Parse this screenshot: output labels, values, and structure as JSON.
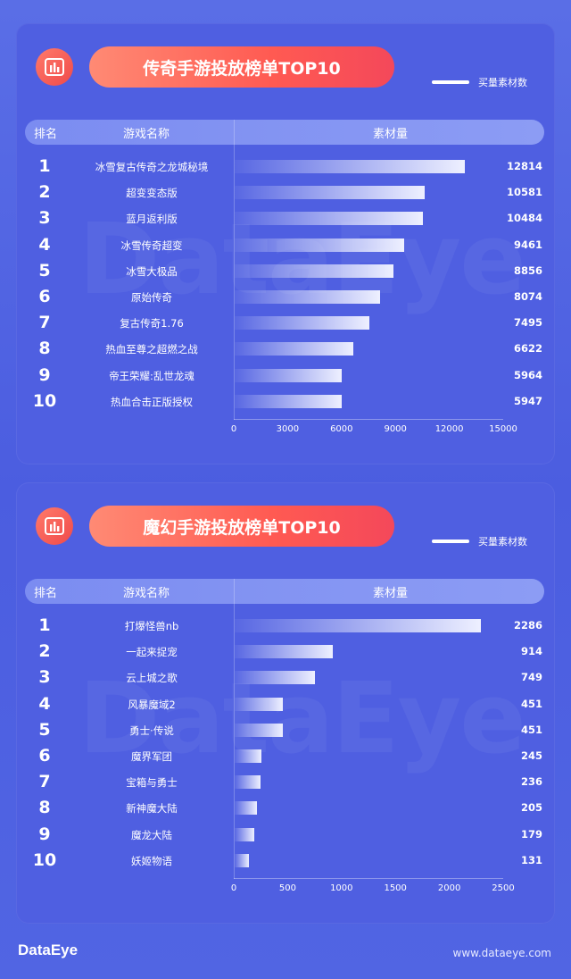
{
  "watermark": "DataEye",
  "legend_label": "买量素材数",
  "header": {
    "rank": "排名",
    "name": "游戏名称",
    "material": "素材量"
  },
  "footer": {
    "logo": "DataEye",
    "url": "www.dataeye.com"
  },
  "icons": {
    "panel_icon": "bar-chart-icon"
  },
  "colors": {
    "title_pill": "#ff6a5e",
    "background": "#4f5fe1",
    "bar_end": "#eef0ff"
  },
  "chart_data": [
    {
      "type": "bar",
      "orientation": "horizontal",
      "title": "传奇手游投放榜单TOP10",
      "ranks": [
        "1",
        "2",
        "3",
        "4",
        "5",
        "6",
        "7",
        "8",
        "9",
        "10"
      ],
      "categories": [
        "冰雪复古传奇之龙城秘境",
        "超变变态版",
        "蓝月返利版",
        "冰雪传奇超变",
        "冰雪大极品",
        "原始传奇",
        "复古传奇1.76",
        "热血至尊之超燃之战",
        "帝王荣耀:乱世龙魂",
        "热血合击正版授权"
      ],
      "values": [
        12814,
        10581,
        10484,
        9461,
        8856,
        8074,
        7495,
        6622,
        5964,
        5947
      ],
      "value_labels": [
        "12814",
        "10581",
        "10484",
        "9461",
        "8856",
        "8074",
        "7495",
        "6622",
        "5964",
        "5947"
      ],
      "xlim": [
        0,
        15000
      ],
      "xticks": [
        "0",
        "3000",
        "6000",
        "9000",
        "12000",
        "15000"
      ],
      "legend": "买量素材数"
    },
    {
      "type": "bar",
      "orientation": "horizontal",
      "title": "魔幻手游投放榜单TOP10",
      "ranks": [
        "1",
        "2",
        "3",
        "4",
        "5",
        "6",
        "7",
        "8",
        "9",
        "10"
      ],
      "categories": [
        "打爆怪兽nb",
        "一起来捉宠",
        "云上城之歌",
        "风暴魔域2",
        "勇士·传说",
        "魔界军团",
        "宝箱与勇士",
        "新神魔大陆",
        "魔龙大陆",
        "妖姬物语"
      ],
      "values": [
        2286,
        914,
        749,
        451,
        451,
        245,
        236,
        205,
        179,
        131
      ],
      "value_labels": [
        "2286",
        "914",
        "749",
        "451",
        "451",
        "245",
        "236",
        "205",
        "179",
        "131"
      ],
      "xlim": [
        0,
        2500
      ],
      "xticks": [
        "0",
        "500",
        "1000",
        "1500",
        "2000",
        "2500"
      ],
      "legend": "买量素材数"
    }
  ]
}
